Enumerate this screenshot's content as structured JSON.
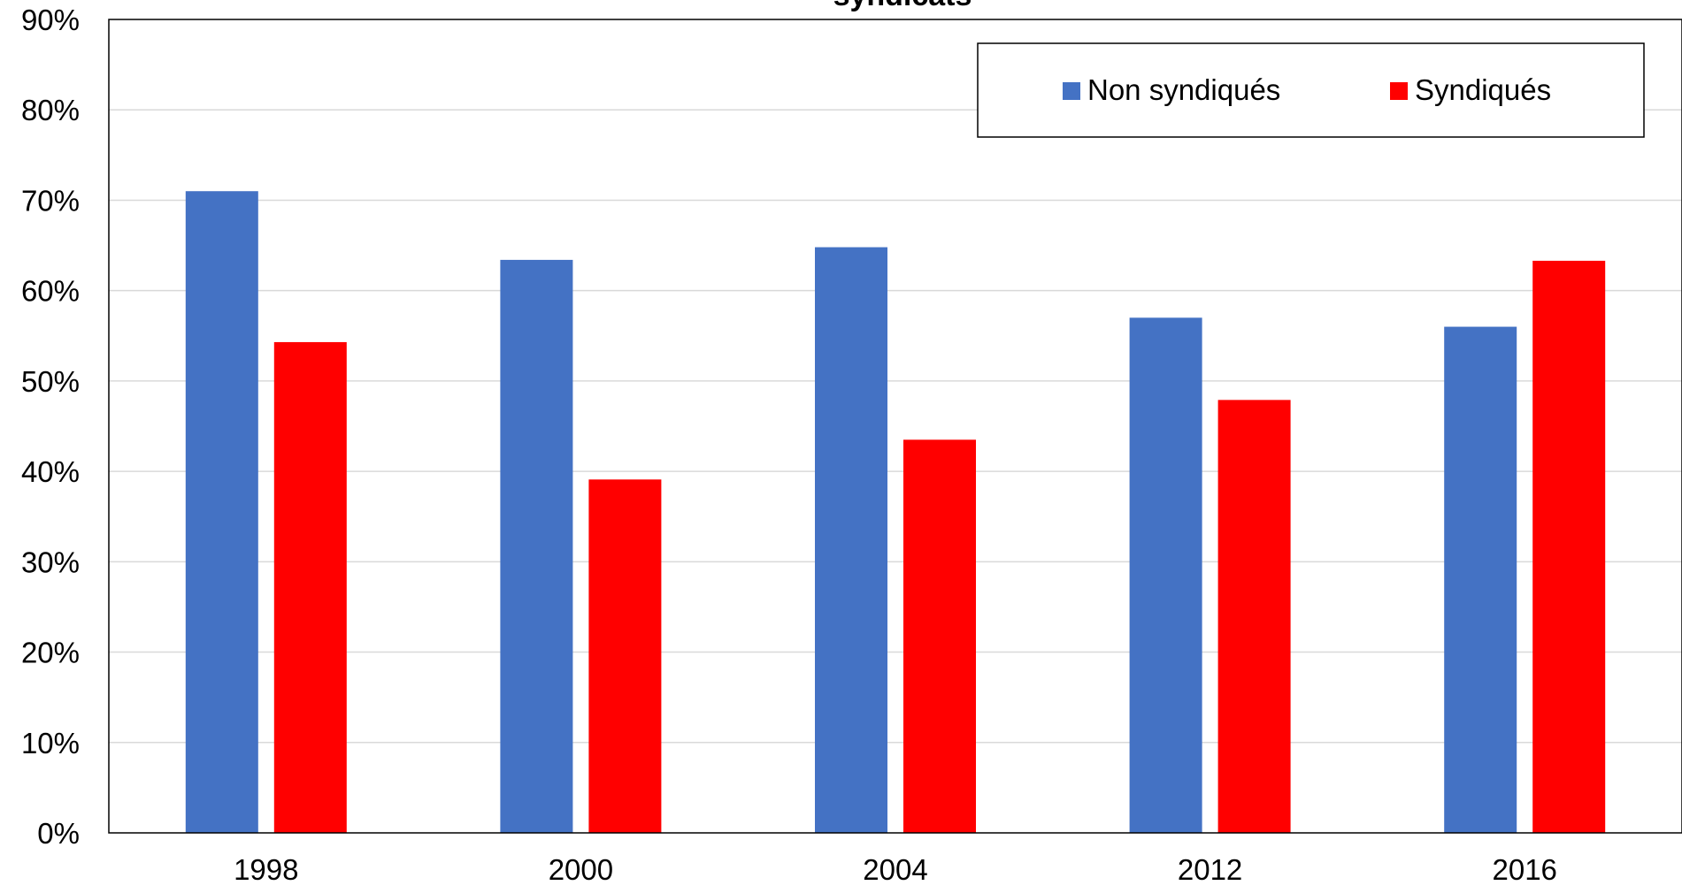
{
  "chart_data": {
    "type": "bar",
    "title": "syndicats",
    "categories": [
      "1998",
      "2000",
      "2004",
      "2012",
      "2016"
    ],
    "series": [
      {
        "name": "Non syndiqués",
        "color": "#4472C4",
        "values": [
          71,
          63.4,
          64.8,
          57,
          56
        ]
      },
      {
        "name": "Syndiqués",
        "color": "#FF0000",
        "values": [
          54.3,
          39.1,
          43.5,
          47.9,
          63.3
        ]
      }
    ],
    "ylim": [
      0,
      90
    ],
    "yticks": [
      "0%",
      "10%",
      "20%",
      "30%",
      "40%",
      "50%",
      "60%",
      "70%",
      "80%",
      "90%"
    ],
    "grid": true,
    "legend_position": "top-right"
  }
}
